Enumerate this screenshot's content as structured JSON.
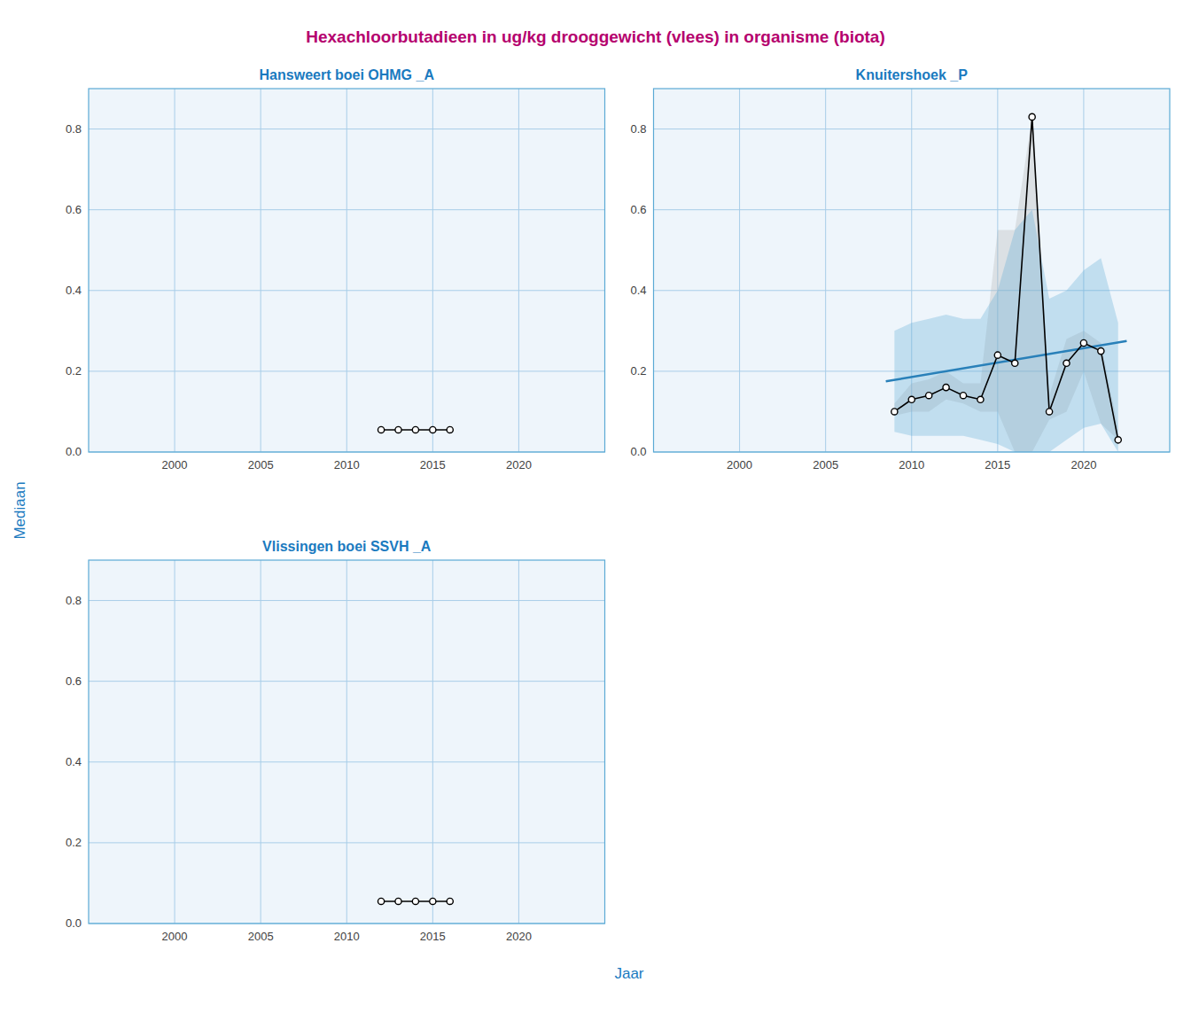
{
  "title": "Hexachloorbutadieen in ug/kg drooggewicht (vlees) in organisme (biota)",
  "xlabel": "Jaar",
  "ylabel": "Mediaan",
  "chart_data": [
    {
      "type": "line",
      "title": "Hansweert boei OHMG _A",
      "xlim": [
        1995,
        2025
      ],
      "xticks": [
        2000,
        2005,
        2010,
        2015,
        2020
      ],
      "ylim": [
        0.0,
        0.9
      ],
      "yticks": [
        {
          "value": 0.0,
          "label": "0.0"
        },
        0.2,
        0.4,
        0.6,
        0.8
      ],
      "grid": true,
      "series": [
        {
          "type": "line",
          "color": "#000000",
          "marker": "circle",
          "x": [
            2012,
            2013,
            2014,
            2015,
            2016
          ],
          "values": [
            0.055,
            0.055,
            0.055,
            0.055,
            0.055
          ]
        }
      ]
    },
    {
      "type": "line",
      "title": "Knuitershoek _P",
      "xlim": [
        1995,
        2025
      ],
      "xticks": [
        2000,
        2005,
        2010,
        2015,
        2020
      ],
      "ylim": [
        0.0,
        0.9
      ],
      "yticks": [
        {
          "value": 0.0,
          "label": "0.0"
        },
        0.2,
        0.4,
        0.6,
        0.8
      ],
      "grid": true,
      "series": [
        {
          "type": "area",
          "color": "#b0b0b0",
          "x": [
            2009,
            2010,
            2011,
            2012,
            2013,
            2014,
            2015,
            2016,
            2017,
            2018,
            2019,
            2020,
            2021,
            2022
          ],
          "low": [
            0.09,
            0.1,
            0.1,
            0.13,
            0.12,
            0.1,
            0.1,
            0.0,
            0.0,
            0.08,
            0.1,
            0.2,
            0.07,
            0.03
          ],
          "high": [
            0.12,
            0.17,
            0.18,
            0.2,
            0.17,
            0.17,
            0.55,
            0.55,
            0.83,
            0.14,
            0.28,
            0.3,
            0.27,
            0.06
          ]
        },
        {
          "type": "area",
          "color": "#5baad5",
          "x": [
            2009,
            2010,
            2011,
            2012,
            2013,
            2014,
            2015,
            2016,
            2017,
            2018,
            2019,
            2020,
            2021,
            2022
          ],
          "low": [
            0.05,
            0.04,
            0.04,
            0.04,
            0.04,
            0.03,
            0.02,
            0.0,
            0.0,
            0.0,
            0.03,
            0.06,
            0.07,
            0.0
          ],
          "high": [
            0.3,
            0.32,
            0.33,
            0.34,
            0.33,
            0.33,
            0.4,
            0.55,
            0.6,
            0.38,
            0.4,
            0.45,
            0.48,
            0.32
          ]
        },
        {
          "type": "line",
          "color": "#2980b9",
          "x": [
            2008.5,
            2022.5
          ],
          "values": [
            0.175,
            0.275
          ]
        },
        {
          "type": "line",
          "color": "#000000",
          "marker": "circle",
          "x": [
            2009,
            2010,
            2011,
            2012,
            2013,
            2014,
            2015,
            2016,
            2017,
            2018,
            2019,
            2020,
            2021,
            2022
          ],
          "values": [
            0.1,
            0.13,
            0.14,
            0.16,
            0.14,
            0.13,
            0.24,
            0.22,
            0.83,
            0.1,
            0.22,
            0.27,
            0.25,
            0.03
          ]
        }
      ]
    },
    {
      "type": "line",
      "title": "Vlissingen boei SSVH _A",
      "xlim": [
        1995,
        2025
      ],
      "xticks": [
        2000,
        2005,
        2010,
        2015,
        2020
      ],
      "ylim": [
        0.0,
        0.9
      ],
      "yticks": [
        {
          "value": 0.0,
          "label": "0.0"
        },
        0.2,
        0.4,
        0.6,
        0.8
      ],
      "grid": true,
      "series": [
        {
          "type": "line",
          "color": "#000000",
          "marker": "circle",
          "x": [
            2012,
            2013,
            2014,
            2015,
            2016
          ],
          "values": [
            0.055,
            0.055,
            0.055,
            0.055,
            0.055
          ]
        }
      ]
    }
  ]
}
